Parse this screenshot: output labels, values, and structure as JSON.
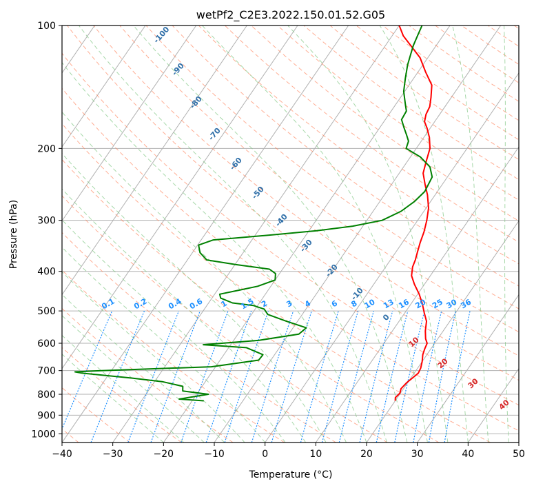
{
  "chart_data": {
    "type": "skew-t",
    "title": "wetPf2_C2E3.2022.150.01.52.G05",
    "xlabel": "Temperature (°C)",
    "ylabel": "Pressure (hPa)",
    "xlim": [
      -40,
      50
    ],
    "ylim": [
      1050,
      100
    ],
    "y_scale": "log",
    "grid": true,
    "x_ticks": [
      -40,
      -30,
      -20,
      -10,
      0,
      10,
      20,
      30,
      40,
      50
    ],
    "y_ticks": [
      100,
      200,
      300,
      400,
      500,
      600,
      700,
      800,
      900,
      1000
    ],
    "colors": {
      "temperature": "#ff0000",
      "dewpoint": "#008000",
      "grid": "#b0b0b0",
      "dry_adiabat": "#ff8a65",
      "moist_adiabat": "#81c784",
      "mixing_ratio": "#1e90ff",
      "isotherm": "#9e9e9e"
    },
    "series": [
      {
        "name": "Temperature",
        "points": [
          [
            20.0,
            830
          ],
          [
            19.6,
            815
          ],
          [
            19.9,
            795
          ],
          [
            19.5,
            775
          ],
          [
            19.8,
            750
          ],
          [
            20.3,
            730
          ],
          [
            20.8,
            710
          ],
          [
            20.6,
            690
          ],
          [
            20.0,
            665
          ],
          [
            19.2,
            640
          ],
          [
            18.8,
            620
          ],
          [
            18.5,
            600
          ],
          [
            17.6,
            585
          ],
          [
            16.5,
            560
          ],
          [
            15.4,
            530
          ],
          [
            13.8,
            505
          ],
          [
            12.2,
            480
          ],
          [
            10.3,
            455
          ],
          [
            8.0,
            430
          ],
          [
            6.3,
            410
          ],
          [
            5.3,
            390
          ],
          [
            4.9,
            375
          ],
          [
            4.3,
            360
          ],
          [
            3.5,
            340
          ],
          [
            2.8,
            320
          ],
          [
            1.8,
            300
          ],
          [
            0.5,
            280
          ],
          [
            -1.5,
            260
          ],
          [
            -3.4,
            245
          ],
          [
            -5.3,
            230
          ],
          [
            -6.3,
            215
          ],
          [
            -7.3,
            200
          ],
          [
            -8.9,
            188
          ],
          [
            -10.7,
            178
          ],
          [
            -12.0,
            172
          ],
          [
            -12.7,
            165
          ],
          [
            -13.0,
            158
          ],
          [
            -14.0,
            150
          ],
          [
            -15.5,
            140
          ],
          [
            -18.5,
            130
          ],
          [
            -21.5,
            120
          ],
          [
            -25.0,
            112
          ],
          [
            -27.8,
            106
          ],
          [
            -30.0,
            100
          ]
        ]
      },
      {
        "name": "Dewpoint",
        "points": [
          [
            -17.7,
            830
          ],
          [
            -22.8,
            822
          ],
          [
            -17.7,
            800
          ],
          [
            -23.2,
            785
          ],
          [
            -23.8,
            765
          ],
          [
            -28.5,
            745
          ],
          [
            -35.0,
            730
          ],
          [
            -45.5,
            710
          ],
          [
            -47.0,
            705
          ],
          [
            -42.0,
            700
          ],
          [
            -20.8,
            685
          ],
          [
            -12.4,
            660
          ],
          [
            -12.3,
            640
          ],
          [
            -16.5,
            615
          ],
          [
            -25.4,
            605
          ],
          [
            -15.0,
            590
          ],
          [
            -8.0,
            570
          ],
          [
            -7.4,
            550
          ],
          [
            -12.2,
            530
          ],
          [
            -16.8,
            510
          ],
          [
            -18.2,
            495
          ],
          [
            -20.8,
            485
          ],
          [
            -25.3,
            478
          ],
          [
            -28.3,
            465
          ],
          [
            -29.0,
            455
          ],
          [
            -25.8,
            445
          ],
          [
            -22.6,
            435
          ],
          [
            -20.0,
            420
          ],
          [
            -20.8,
            405
          ],
          [
            -22.6,
            395
          ],
          [
            -29.8,
            385
          ],
          [
            -36.2,
            375
          ],
          [
            -38.5,
            360
          ],
          [
            -39.8,
            345
          ],
          [
            -37.6,
            335
          ],
          [
            -26.0,
            325
          ],
          [
            -18.5,
            318
          ],
          [
            -12.0,
            310
          ],
          [
            -7.0,
            300
          ],
          [
            -4.5,
            285
          ],
          [
            -3.2,
            270
          ],
          [
            -2.5,
            255
          ],
          [
            -3.0,
            235
          ],
          [
            -4.8,
            222
          ],
          [
            -8.0,
            210
          ],
          [
            -12.0,
            200
          ],
          [
            -12.5,
            192
          ],
          [
            -13.8,
            185
          ],
          [
            -15.2,
            178
          ],
          [
            -16.8,
            170
          ],
          [
            -17.0,
            162
          ],
          [
            -18.3,
            155
          ],
          [
            -20.2,
            145
          ],
          [
            -21.6,
            135
          ],
          [
            -23.0,
            125
          ],
          [
            -23.8,
            118
          ],
          [
            -24.5,
            112
          ],
          [
            -25.0,
            106
          ],
          [
            -25.5,
            100
          ]
        ]
      }
    ],
    "dry_adiabat_labels": [
      "-100",
      "-90",
      "-80",
      "-70",
      "-60",
      "-50",
      "-40",
      "-30",
      "-20",
      "-10",
      "0"
    ],
    "moist_adiabat_labels": [
      "10",
      "20",
      "30",
      "40"
    ],
    "mixing_ratio_labels": [
      "0.1",
      "0.2",
      "0.4",
      "0.6",
      "1",
      "1.5",
      "2",
      "3",
      "4",
      "6",
      "8",
      "10",
      "13",
      "16",
      "20",
      "25",
      "30",
      "36"
    ]
  }
}
